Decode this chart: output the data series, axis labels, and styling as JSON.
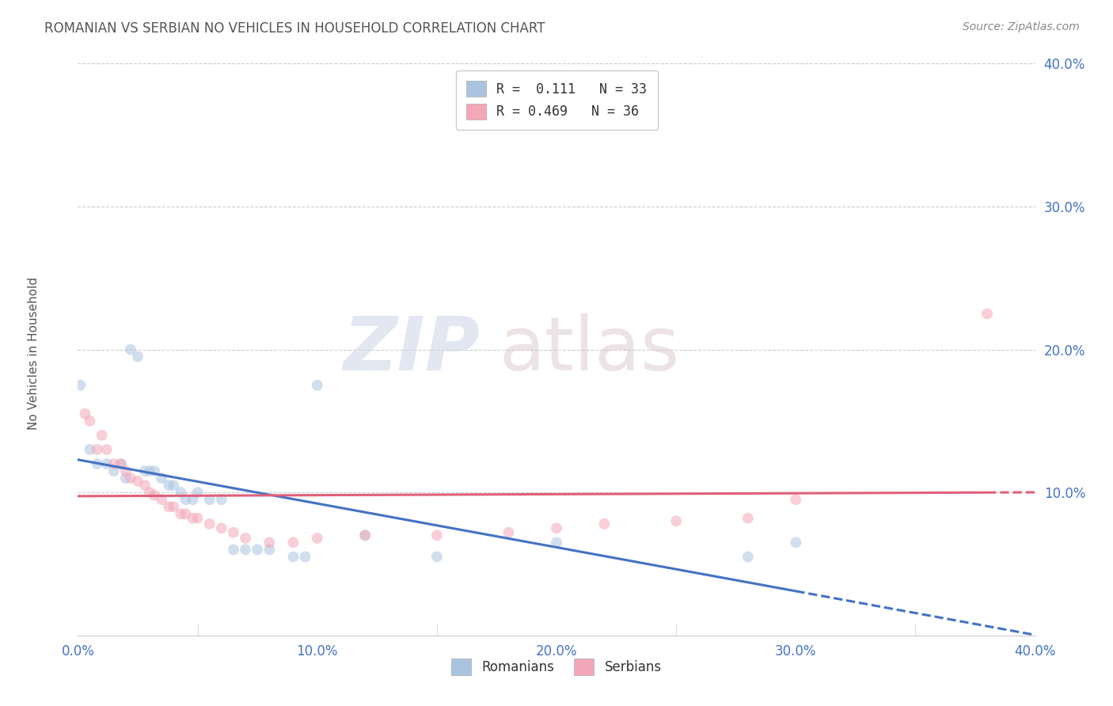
{
  "title": "ROMANIAN VS SERBIAN NO VEHICLES IN HOUSEHOLD CORRELATION CHART",
  "source": "Source: ZipAtlas.com",
  "ylabel_text": "No Vehicles in Household",
  "watermark_zip": "ZIP",
  "watermark_atlas": "atlas",
  "xlim": [
    0.0,
    0.4
  ],
  "ylim": [
    0.0,
    0.4
  ],
  "romanian_x": [
    0.001,
    0.005,
    0.008,
    0.012,
    0.015,
    0.018,
    0.02,
    0.022,
    0.025,
    0.028,
    0.03,
    0.032,
    0.035,
    0.038,
    0.04,
    0.043,
    0.045,
    0.048,
    0.05,
    0.055,
    0.06,
    0.065,
    0.07,
    0.075,
    0.08,
    0.09,
    0.095,
    0.1,
    0.12,
    0.15,
    0.2,
    0.28,
    0.3
  ],
  "romanian_y": [
    0.175,
    0.13,
    0.12,
    0.12,
    0.115,
    0.12,
    0.11,
    0.2,
    0.195,
    0.115,
    0.115,
    0.115,
    0.11,
    0.105,
    0.105,
    0.1,
    0.095,
    0.095,
    0.1,
    0.095,
    0.095,
    0.06,
    0.06,
    0.06,
    0.06,
    0.055,
    0.055,
    0.175,
    0.07,
    0.055,
    0.065,
    0.055,
    0.065
  ],
  "serbian_x": [
    0.003,
    0.005,
    0.008,
    0.01,
    0.012,
    0.015,
    0.018,
    0.02,
    0.022,
    0.025,
    0.028,
    0.03,
    0.032,
    0.035,
    0.038,
    0.04,
    0.043,
    0.045,
    0.048,
    0.05,
    0.055,
    0.06,
    0.065,
    0.07,
    0.08,
    0.09,
    0.1,
    0.12,
    0.15,
    0.18,
    0.2,
    0.22,
    0.25,
    0.28,
    0.3,
    0.38
  ],
  "serbian_y": [
    0.155,
    0.15,
    0.13,
    0.14,
    0.13,
    0.12,
    0.12,
    0.115,
    0.11,
    0.108,
    0.105,
    0.1,
    0.098,
    0.095,
    0.09,
    0.09,
    0.085,
    0.085,
    0.082,
    0.082,
    0.078,
    0.075,
    0.072,
    0.068,
    0.065,
    0.065,
    0.068,
    0.07,
    0.07,
    0.072,
    0.075,
    0.078,
    0.08,
    0.082,
    0.095,
    0.225
  ],
  "romanian_color": "#aac4e0",
  "romanian_line_color": "#4472c4",
  "serbian_color": "#f4a7b9",
  "serbian_line_color": "#e0607a",
  "background_color": "#ffffff",
  "title_color": "#555555",
  "source_color": "#888888",
  "axis_label_color": "#555555",
  "tick_color": "#4472c4",
  "watermark_color": "#d0d8e8",
  "watermark_atlas_color": "#d8c8d0",
  "marker_size": 100,
  "marker_alpha": 0.55,
  "line_width": 2.2,
  "legend_romanian": "R =  0.111   N = 33",
  "legend_serbian": "R = 0.469   N = 36",
  "bottom_legend_romanian": "Romanians",
  "bottom_legend_serbian": "Serbians"
}
